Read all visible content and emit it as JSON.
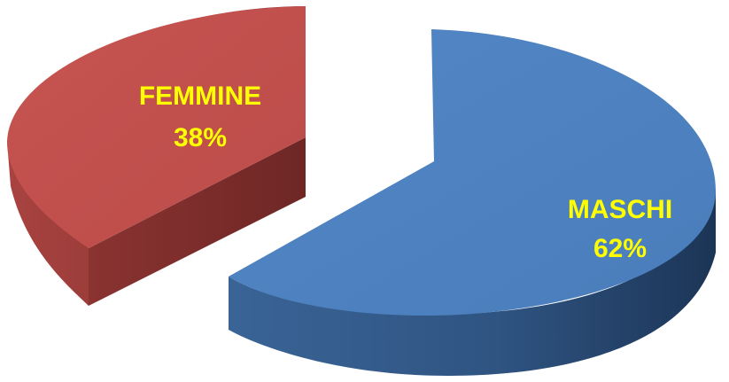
{
  "chart_data": {
    "type": "pie",
    "style": "3d-exploded",
    "title": "",
    "slices": [
      {
        "label": "MASCHI",
        "value": 62,
        "value_label": "62%",
        "color": "#4F81BD"
      },
      {
        "label": "FEMMINE",
        "value": 38,
        "value_label": "38%",
        "color": "#C0504D"
      }
    ],
    "label_color": "#FFFF00"
  }
}
